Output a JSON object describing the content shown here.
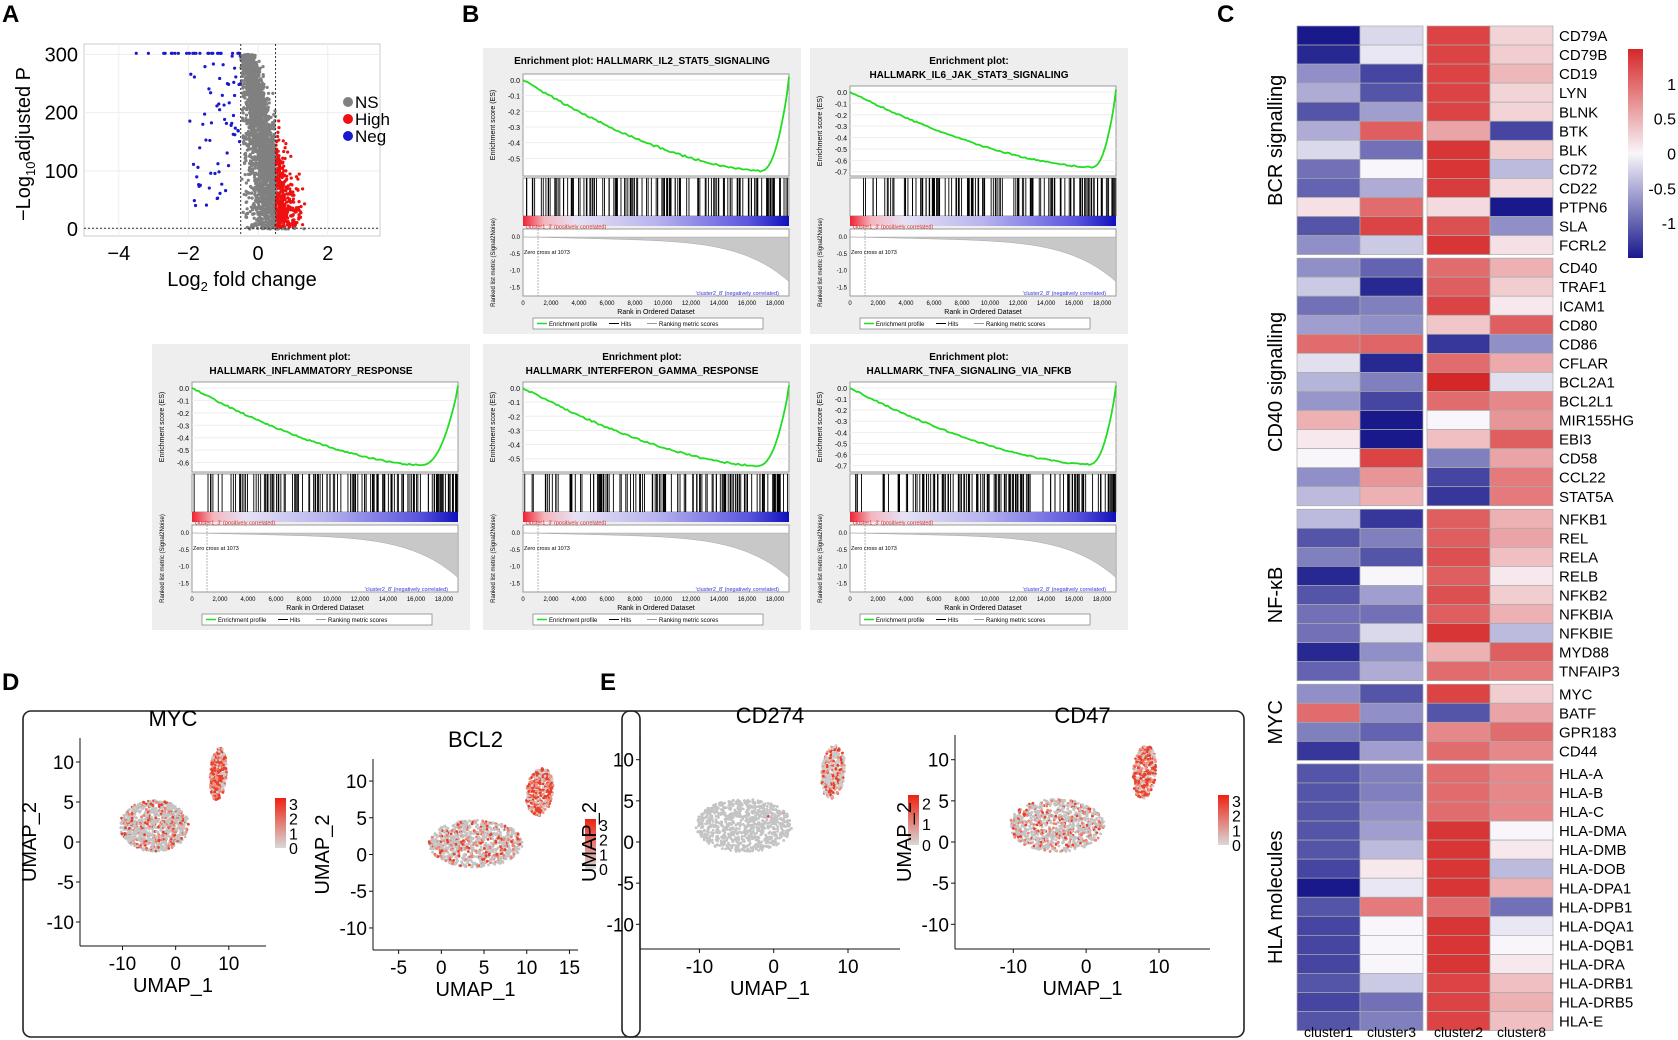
{
  "chart_data": {
    "volcano": {
      "type": "scatter",
      "panel": "A",
      "xlabel": "Log",
      "xlabel_sub": "2",
      "xlabel_tail": " fold change",
      "ylabel": "−Log",
      "ylabel_sub": "10",
      "ylabel_tail": "adjusted P",
      "xlim": [
        -5,
        3.5
      ],
      "ylim": [
        -12,
        318
      ],
      "x_ticks": [
        -4,
        -2,
        0,
        2
      ],
      "y_ticks": [
        0,
        100,
        200,
        300
      ],
      "v_thresholds": [
        -0.5,
        0.5
      ],
      "h_threshold": 1.3,
      "legend": [
        "NS",
        "High",
        "Neg"
      ],
      "colors": {
        "NS": "#808080",
        "High": "#ee1111",
        "Neg": "#1a1acc"
      }
    },
    "gsea": {
      "type": "line",
      "panel": "B",
      "ylabel": "Enrichment score (ES)",
      "metric_label": "Ranked list metric (Signal2Noise)",
      "xlabel": "Rank in Ordered Dataset",
      "x_ticks": [
        "0",
        "2,000",
        "4,000",
        "6,000",
        "8,000",
        "10,000",
        "12,000",
        "14,000",
        "16,000",
        "18,000"
      ],
      "metric_ticks": [
        "0.0",
        "-0.5",
        "-1.0",
        "-1.5"
      ],
      "pos_label": "'cluster1_3' (positively correlated)",
      "neg_label": "'cluster2_8' (negatively correlated)",
      "zero_cross": "Zero cross at 1073",
      "legend": [
        "Enrichment profile",
        "Hits",
        "Ranking metric scores"
      ],
      "plots": [
        {
          "title1": "Enrichment plot: HALLMARK_IL2_STAT5_SIGNALING",
          "title2": "",
          "y_ticks": [
            "0.0",
            "-0.1",
            "-0.2",
            "-0.3",
            "-0.4",
            "-0.5"
          ],
          "ymin": -0.6,
          "min_es": -0.58,
          "min_rank": 17000
        },
        {
          "title1": "Enrichment plot:",
          "title2": "HALLMARK_IL6_JAK_STAT3_SIGNALING",
          "y_ticks": [
            "0.0",
            "-0.1",
            "-0.2",
            "-0.3",
            "-0.4",
            "-0.5",
            "-0.6",
            "-0.7"
          ],
          "ymin": -0.72,
          "min_es": -0.66,
          "min_rank": 17300
        },
        {
          "title1": "Enrichment plot:",
          "title2": "HALLMARK_INFLAMMATORY_RESPONSE",
          "y_ticks": [
            "0.0",
            "-0.1",
            "-0.2",
            "-0.3",
            "-0.4",
            "-0.5",
            "-0.6"
          ],
          "ymin": -0.66,
          "min_es": -0.62,
          "min_rank": 16400
        },
        {
          "title1": "Enrichment plot:",
          "title2": "HALLMARK_INTERFERON_GAMMA_RESPONSE",
          "y_ticks": [
            "0.0",
            "-0.1",
            "-0.2",
            "-0.3",
            "-0.4",
            "-0.5"
          ],
          "ymin": -0.58,
          "min_es": -0.55,
          "min_rank": 16800
        },
        {
          "title1": "Enrichment plot:",
          "title2": "HALLMARK_TNFA_SIGNALING_VIA_NFKB",
          "y_ticks": [
            "0.0",
            "-0.1",
            "-0.2",
            "-0.3",
            "-0.4",
            "-0.5",
            "-0.6",
            "-0.7"
          ],
          "ymin": -0.74,
          "min_es": -0.69,
          "min_rank": 17100
        }
      ]
    },
    "heatmap": {
      "type": "heatmap",
      "panel": "C",
      "columns": [
        "cluster1",
        "cluster3",
        "cluster2",
        "cluster8"
      ],
      "scale_ticks": [
        "1",
        "0.5",
        "0",
        "-0.5",
        "-1"
      ],
      "scale_range": [
        -1.5,
        1.5
      ],
      "groups": [
        {
          "name": "BCR signalling",
          "genes": [
            "CD79A",
            "CD79B",
            "CD19",
            "LYN",
            "BLNK",
            "BTK",
            "BLK",
            "CD72",
            "CD22",
            "PTPN6",
            "SLA",
            "FCRL2"
          ],
          "values": [
            [
              -1.5,
              -0.2,
              1.3,
              0.25
            ],
            [
              -1.4,
              -0.1,
              1.3,
              0.3
            ],
            [
              -0.7,
              -1.2,
              1.3,
              0.45
            ],
            [
              -0.5,
              -1.1,
              1.3,
              0.25
            ],
            [
              -1.1,
              -0.6,
              1.3,
              0.25
            ],
            [
              -0.5,
              1.1,
              0.6,
              -1.2
            ],
            [
              -0.2,
              -0.9,
              1.4,
              0.3
            ],
            [
              -0.9,
              0.0,
              1.4,
              -0.4
            ],
            [
              -1.0,
              -0.5,
              1.35,
              0.2
            ],
            [
              0.15,
              1.0,
              0.2,
              -1.6
            ],
            [
              -1.1,
              1.3,
              1.2,
              -0.7
            ],
            [
              -0.7,
              -0.3,
              1.4,
              0.15
            ]
          ]
        },
        {
          "name": "CD40 signalling",
          "genes": [
            "CD40",
            "TRAF1",
            "ICAM1",
            "CD80",
            "CD86",
            "CFLAR",
            "BCL2A1",
            "BCL2L1",
            "MIR155HG",
            "EBI3",
            "CD58",
            "CCL22",
            "STAT5A"
          ],
          "values": [
            [
              -0.7,
              -1.0,
              1.0,
              0.5
            ],
            [
              -0.3,
              -1.4,
              1.1,
              0.3
            ],
            [
              -0.9,
              -0.8,
              1.3,
              0.1
            ],
            [
              -0.6,
              -0.7,
              0.35,
              1.1
            ],
            [
              1.0,
              1.05,
              -1.3,
              -0.7
            ],
            [
              -0.15,
              -1.4,
              1.0,
              0.55
            ],
            [
              -0.45,
              -0.8,
              1.5,
              -0.15
            ],
            [
              -0.65,
              -1.2,
              1.0,
              0.8
            ],
            [
              0.5,
              -1.6,
              0.0,
              0.7
            ],
            [
              0.1,
              -1.6,
              0.4,
              1.1
            ],
            [
              0.0,
              1.3,
              -0.8,
              0.6
            ],
            [
              -0.7,
              0.7,
              -1.2,
              0.9
            ],
            [
              -0.4,
              0.5,
              -1.3,
              0.9
            ]
          ]
        },
        {
          "name": "NF-κB",
          "genes": [
            "NFKB1",
            "REL",
            "RELA",
            "RELB",
            "NFKB2",
            "NFKBIA",
            "NFKBIE",
            "MYD88",
            "TNFAIP3"
          ],
          "values": [
            [
              -0.4,
              -1.3,
              1.1,
              0.5
            ],
            [
              -1.1,
              -0.8,
              1.1,
              0.6
            ],
            [
              -0.8,
              -1.1,
              1.2,
              0.4
            ],
            [
              -1.4,
              0.0,
              1.1,
              0.1
            ],
            [
              -1.1,
              -0.6,
              1.2,
              0.3
            ],
            [
              -0.9,
              -0.9,
              1.1,
              0.5
            ],
            [
              -0.9,
              -0.2,
              1.4,
              -0.4
            ],
            [
              -1.4,
              -0.7,
              0.5,
              1.1
            ],
            [
              -1.0,
              -0.5,
              1.0,
              0.9
            ]
          ]
        },
        {
          "name": "MYC",
          "genes": [
            "MYC",
            "BATF",
            "GPR183",
            "CD44"
          ],
          "values": [
            [
              -0.7,
              -1.1,
              1.3,
              0.3
            ],
            [
              1.0,
              -0.7,
              -1.1,
              0.6
            ],
            [
              -0.8,
              -1.0,
              0.8,
              1.0
            ],
            [
              -1.3,
              -0.6,
              1.0,
              0.8
            ]
          ]
        },
        {
          "name": "HLA molecules",
          "genes": [
            "HLA-A",
            "HLA-B",
            "HLA-C",
            "HLA-DMA",
            "HLA-DMB",
            "HLA-DOB",
            "HLA-DPA1",
            "HLA-DPB1",
            "HLA-DQA1",
            "HLA-DQB1",
            "HLA-DRA",
            "HLA-DRB1",
            "HLA-DRB5",
            "HLA-E"
          ],
          "values": [
            [
              -1.1,
              -0.8,
              1.0,
              0.8
            ],
            [
              -1.1,
              -0.8,
              1.0,
              0.8
            ],
            [
              -1.1,
              -0.7,
              1.0,
              0.8
            ],
            [
              -1.1,
              -0.6,
              1.4,
              0.0
            ],
            [
              -1.1,
              -0.4,
              1.4,
              0.1
            ],
            [
              -1.2,
              0.1,
              1.4,
              -0.4
            ],
            [
              -1.6,
              -0.1,
              1.4,
              0.5
            ],
            [
              -1.1,
              0.9,
              1.0,
              -0.9
            ],
            [
              -1.2,
              0.0,
              1.4,
              -0.1
            ],
            [
              -1.2,
              0.0,
              1.4,
              0.0
            ],
            [
              -1.2,
              0.0,
              1.4,
              0.1
            ],
            [
              -1.1,
              -0.3,
              1.3,
              0.4
            ],
            [
              -1.2,
              -0.9,
              1.3,
              0.5
            ],
            [
              -1.1,
              -0.8,
              1.3,
              0.4
            ]
          ]
        }
      ]
    },
    "umap": {
      "type": "scatter",
      "xlabel": "UMAP_1",
      "ylabel": "UMAP_2",
      "panels": [
        {
          "panel": "D",
          "plots": [
            {
              "gene": "MYC",
              "x_ticks": [
                -10,
                0,
                10
              ],
              "xlim": [
                -18,
                17
              ],
              "y_ticks": [
                10,
                5,
                0,
                -5,
                -10
              ],
              "ylim": [
                -13,
                13
              ],
              "scale_ticks": [
                "3",
                "2",
                "1",
                "0"
              ],
              "scale_max": 3.4
            },
            {
              "gene": "BCL2",
              "x_ticks": [
                -5,
                0,
                5,
                10,
                15
              ],
              "xlim": [
                -8,
                16
              ],
              "y_ticks": [
                10,
                5,
                0,
                -5,
                -10
              ],
              "ylim": [
                -13,
                13
              ],
              "scale_ticks": [
                "3",
                "2",
                "1",
                "0"
              ],
              "scale_max": 3.4
            }
          ]
        },
        {
          "panel": "E",
          "plots": [
            {
              "gene": "CD274",
              "x_ticks": [
                -10,
                0,
                10
              ],
              "xlim": [
                -18,
                17
              ],
              "y_ticks": [
                10,
                5,
                0,
                -5,
                -10
              ],
              "ylim": [
                -13,
                13
              ],
              "scale_ticks": [
                "2",
                "1",
                "0"
              ],
              "scale_max": 2.4
            },
            {
              "gene": "CD47",
              "x_ticks": [
                -10,
                0,
                10
              ],
              "xlim": [
                -18,
                17
              ],
              "y_ticks": [
                10,
                5,
                0,
                -5,
                -10
              ],
              "ylim": [
                -13,
                13
              ],
              "scale_ticks": [
                "3",
                "2",
                "1",
                "0"
              ],
              "scale_max": 3.4
            }
          ]
        }
      ]
    }
  },
  "panel_labels": {
    "A": "A",
    "B": "B",
    "C": "C",
    "D": "D",
    "E": "E"
  }
}
